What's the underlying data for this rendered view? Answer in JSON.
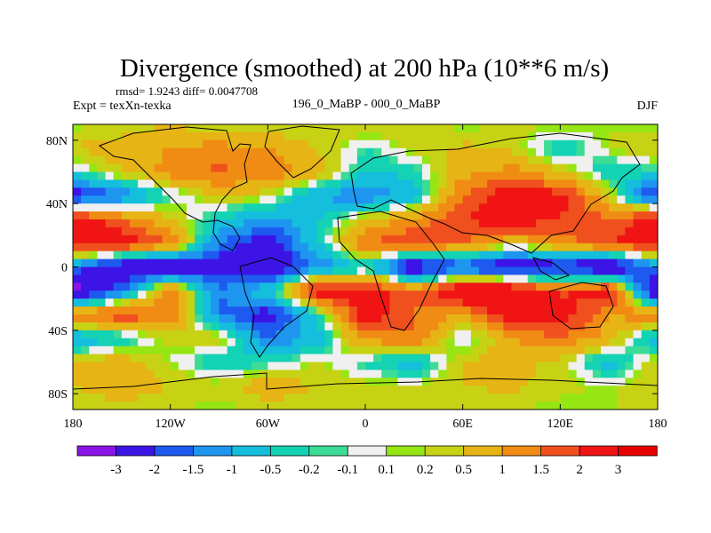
{
  "chart_data": {
    "type": "heatmap",
    "title": "Divergence (smoothed) at 200 hPa (10**6 m/s)",
    "stats": "rmsd= 1.9243 diff= 0.0047708",
    "experiment": "Expt = texXn-texka",
    "subtitle": "196_0_MaBP - 000_0_MaBP",
    "season": "DJF",
    "x_ticks": [
      "180",
      "120W",
      "60W",
      "0",
      "60E",
      "120E",
      "180"
    ],
    "x_tick_values": [
      -180,
      -120,
      -60,
      0,
      60,
      120,
      180
    ],
    "y_ticks": [
      "80N",
      "40N",
      "0",
      "40S",
      "80S"
    ],
    "y_tick_values": [
      80,
      40,
      0,
      -40,
      -80
    ],
    "xlim": [
      -180,
      180
    ],
    "ylim": [
      -90,
      90
    ],
    "colorbar_labels": [
      "-3",
      "-2",
      "-1.5",
      "-1",
      "-0.5",
      "-0.2",
      "-0.1",
      "0.1",
      "0.2",
      "0.5",
      "1",
      "1.5",
      "2",
      "3"
    ],
    "colorbar_levels": [
      -3,
      -2,
      -1.5,
      -1,
      -0.5,
      -0.2,
      -0.1,
      0.1,
      0.2,
      0.5,
      1,
      1.5,
      2,
      3
    ],
    "colorbar_colors": [
      "#8a14e6",
      "#3c14e6",
      "#1e5af0",
      "#1e96f0",
      "#14bedc",
      "#14d2b4",
      "#3cdc96",
      "#f0f0f0",
      "#96e614",
      "#c8d214",
      "#e6b414",
      "#f08c14",
      "#f0501e",
      "#f01414",
      "#e60000"
    ],
    "grid_lon": [
      -180,
      -150,
      -120,
      -90,
      -60,
      -30,
      0,
      30,
      60,
      90,
      120,
      150,
      180
    ],
    "grid_lat": [
      90,
      75,
      60,
      45,
      30,
      15,
      0,
      -15,
      -30,
      -45,
      -60,
      -75,
      -90
    ],
    "values": [
      [
        0.1,
        0.2,
        0.5,
        0.2,
        0.1,
        0.2,
        0.5,
        0.3,
        0.1,
        0.2,
        0.3,
        0.2,
        0.1
      ],
      [
        0.5,
        0.8,
        1.0,
        1.2,
        1.0,
        0.5,
        -0.2,
        0.3,
        0.6,
        0.4,
        -0.5,
        0.2,
        0.5
      ],
      [
        -0.2,
        0.5,
        1.2,
        1.6,
        1.4,
        0.8,
        -0.5,
        -0.3,
        0.8,
        1.2,
        0.5,
        -0.5,
        -0.2
      ],
      [
        -2.5,
        -1.5,
        -0.2,
        0.5,
        0.3,
        -1.0,
        -1.5,
        -0.8,
        1.5,
        2.5,
        2.2,
        0.5,
        -2.5
      ],
      [
        2.5,
        1.5,
        0.5,
        -0.5,
        -1.2,
        -0.5,
        0.5,
        1.2,
        2.0,
        2.5,
        2.0,
        1.5,
        2.5
      ],
      [
        2.5,
        2.5,
        1.5,
        -1.5,
        -2.5,
        -0.5,
        1.5,
        2.0,
        1.5,
        0.5,
        1.2,
        2.0,
        2.5
      ],
      [
        -1.5,
        -3.0,
        -3.0,
        -2.5,
        -3.0,
        -1.5,
        -0.5,
        -3.0,
        -2.0,
        -3.0,
        -2.5,
        -3.0,
        -1.5
      ],
      [
        -3.5,
        -1.5,
        1.5,
        -1.5,
        -0.5,
        2.5,
        2.5,
        1.5,
        3.0,
        3.0,
        1.8,
        2.5,
        -3.5
      ],
      [
        1.5,
        2.0,
        1.5,
        -1.5,
        -2.5,
        -0.5,
        2.5,
        1.5,
        1.0,
        2.5,
        2.5,
        1.0,
        1.5
      ],
      [
        -1.0,
        -0.5,
        0.3,
        0.5,
        -1.5,
        -0.8,
        1.2,
        1.5,
        -0.3,
        1.0,
        1.5,
        0.8,
        -1.0
      ],
      [
        0.5,
        0.8,
        0.1,
        -0.5,
        -0.3,
        0.2,
        -0.3,
        -0.8,
        0.5,
        0.8,
        0.3,
        -0.8,
        0.5
      ],
      [
        0.5,
        0.8,
        0.5,
        0.3,
        0.8,
        0.5,
        0.3,
        0.2,
        0.5,
        0.6,
        0.3,
        0.1,
        0.5
      ],
      [
        0.2,
        0.3,
        0.2,
        0.1,
        0.3,
        0.2,
        0.3,
        0.4,
        0.3,
        0.2,
        0.1,
        0.2,
        0.2
      ]
    ]
  }
}
